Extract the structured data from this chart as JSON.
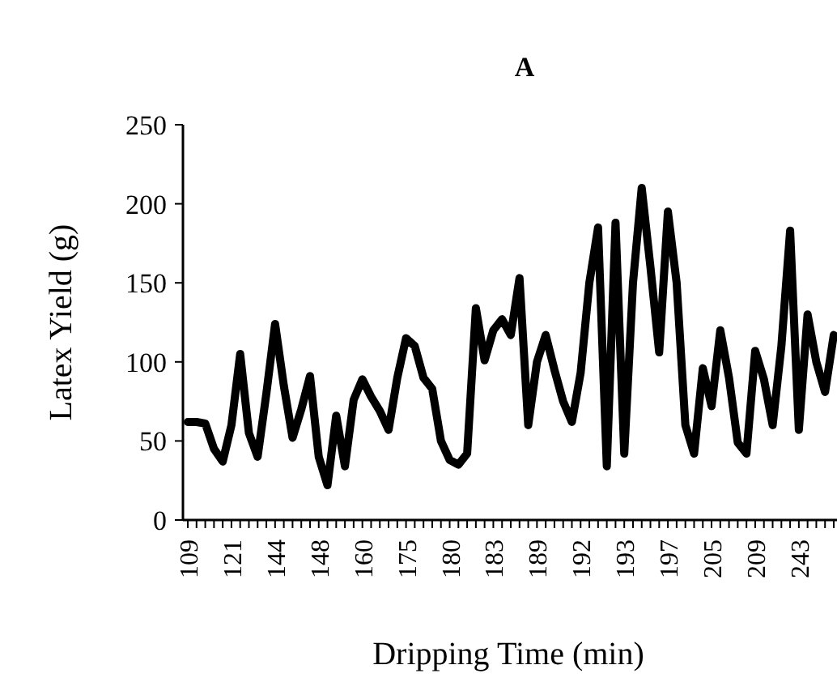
{
  "chart_data": {
    "type": "line",
    "title": "A",
    "xlabel": "Dripping Time (min)",
    "ylabel": "Latex Yield (g)",
    "categories": [
      "109",
      null,
      null,
      null,
      null,
      "121",
      null,
      null,
      null,
      null,
      "144",
      null,
      null,
      null,
      null,
      "148",
      null,
      null,
      null,
      null,
      "160",
      null,
      null,
      null,
      null,
      "175",
      null,
      null,
      null,
      null,
      "180",
      null,
      null,
      null,
      null,
      "183",
      null,
      null,
      null,
      null,
      "189",
      null,
      null,
      null,
      null,
      "192",
      null,
      null,
      null,
      null,
      "193",
      null,
      null,
      null,
      null,
      "197",
      null,
      null,
      null,
      null,
      "205",
      null,
      null,
      null,
      null,
      "209",
      null,
      null,
      null,
      null,
      "243",
      null,
      null,
      null,
      null
    ],
    "series": [
      {
        "color": "#000000",
        "values": [
          62,
          62,
          61,
          45,
          37,
          60,
          105,
          55,
          40,
          80,
          124,
          85,
          52,
          70,
          91,
          40,
          22,
          66,
          34,
          76,
          89,
          78,
          69,
          57,
          90,
          115,
          110,
          90,
          83,
          50,
          38,
          35,
          42,
          134,
          101,
          120,
          127,
          117,
          153,
          60,
          100,
          117,
          95,
          75,
          62,
          93,
          150,
          185,
          34,
          188,
          42,
          150,
          210,
          160,
          106,
          195,
          150,
          60,
          42,
          96,
          72,
          120,
          90,
          49,
          42,
          107,
          89,
          60,
          110,
          183,
          57,
          130,
          100,
          81,
          117
        ]
      }
    ],
    "ylim": [
      0,
      250
    ],
    "yticks": [
      0,
      50,
      100,
      150,
      200,
      250
    ],
    "grid": false,
    "marker": "none",
    "line_style": "solid"
  }
}
